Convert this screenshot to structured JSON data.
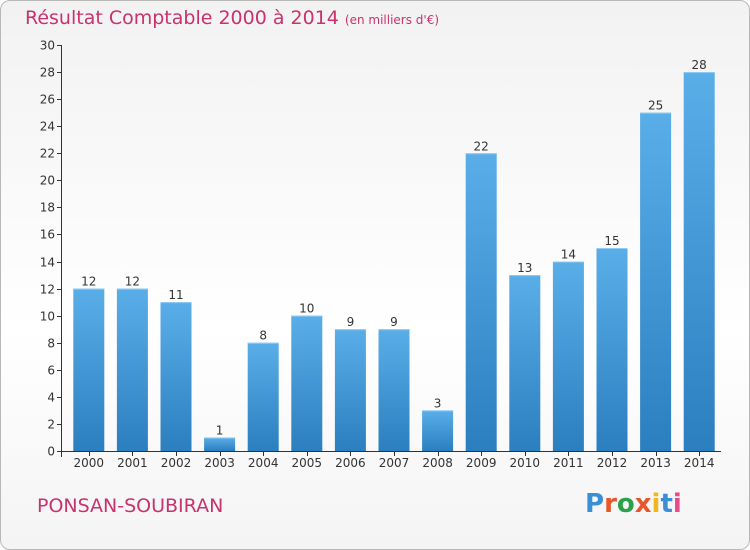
{
  "header": {
    "title": "Résultat Comptable 2000 à 2014",
    "subtitle": "(en milliers d'€)"
  },
  "footer": {
    "commune": "PONSAN-SOUBIRAN",
    "logo": "Proxiti"
  },
  "colors": {
    "title": "#c8326d",
    "bar_top": "#5aaee8",
    "bar_bottom": "#2b7fbf",
    "logo": [
      "#3b8fd6",
      "#e8572a",
      "#2aa14a",
      "#e8572a",
      "#f2b51c",
      "#3b8fd6",
      "#e84a8a"
    ]
  },
  "chart_data": {
    "type": "bar",
    "title": "Résultat Comptable 2000 à 2014",
    "subtitle": "(en milliers d'€)",
    "xlabel": "",
    "ylabel": "",
    "categories": [
      "2000",
      "2001",
      "2002",
      "2003",
      "2004",
      "2005",
      "2006",
      "2007",
      "2008",
      "2009",
      "2010",
      "2011",
      "2012",
      "2013",
      "2014"
    ],
    "values": [
      12,
      12,
      11,
      1,
      8,
      10,
      9,
      9,
      3,
      22,
      13,
      14,
      15,
      25,
      28
    ],
    "ylim": [
      0,
      30
    ],
    "yticks": [
      0,
      2,
      4,
      6,
      8,
      10,
      12,
      14,
      16,
      18,
      20,
      22,
      24,
      26,
      28,
      30
    ],
    "grid": false,
    "data_labels": true
  }
}
